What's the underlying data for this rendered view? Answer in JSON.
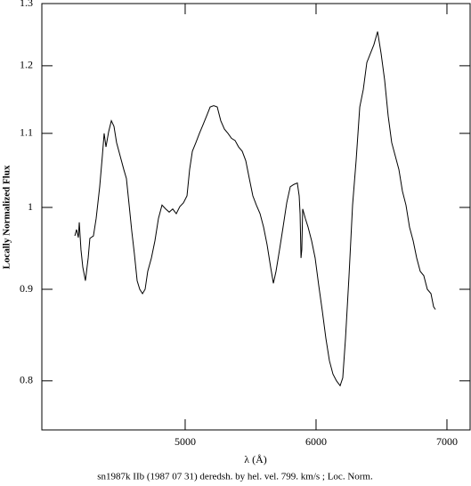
{
  "chart_data": {
    "type": "line",
    "title": "sn1987k IIb (1987 07 31) deredsh. by hel. vel.   799. km/s ;  Loc. Norm.",
    "x_label": "λ (Å)",
    "y_label": "Locally Normalized Flux",
    "color": "#000000",
    "ylog": true,
    "xlim": [
      3905,
      7177
    ],
    "xticks": [
      5000,
      6000,
      7000
    ],
    "ylim": [
      0.751,
      1.3
    ],
    "yticks": [
      0.8,
      0.9,
      1,
      1.1,
      1.2,
      1.3
    ],
    "x": [
      4157,
      4170,
      4184,
      4191,
      4204,
      4218,
      4238,
      4259,
      4272,
      4299,
      4320,
      4347,
      4367,
      4381,
      4395,
      4415,
      4436,
      4456,
      4476,
      4504,
      4531,
      4551,
      4572,
      4592,
      4612,
      4633,
      4653,
      4674,
      4694,
      4714,
      4742,
      4769,
      4796,
      4823,
      4851,
      4878,
      4905,
      4932,
      4959,
      4987,
      5014,
      5034,
      5055,
      5082,
      5109,
      5136,
      5164,
      5191,
      5218,
      5245,
      5272,
      5300,
      5327,
      5354,
      5381,
      5408,
      5436,
      5463,
      5490,
      5517,
      5544,
      5572,
      5599,
      5626,
      5653,
      5674,
      5694,
      5721,
      5748,
      5776,
      5803,
      5830,
      5857,
      5871,
      5878,
      5885,
      5891,
      5898,
      5918,
      5939,
      5966,
      5993,
      6020,
      6048,
      6075,
      6102,
      6129,
      6156,
      6184,
      6204,
      6225,
      6252,
      6279,
      6306,
      6334,
      6361,
      6388,
      6415,
      6442,
      6470,
      6497,
      6524,
      6551,
      6578,
      6606,
      6633,
      6660,
      6687,
      6714,
      6742,
      6769,
      6796,
      6823,
      6850,
      6878,
      6898,
      6912
    ],
    "values": [
      0.964,
      0.972,
      0.962,
      0.981,
      0.947,
      0.926,
      0.91,
      0.937,
      0.961,
      0.964,
      0.986,
      1.027,
      1.068,
      1.1,
      1.081,
      1.102,
      1.118,
      1.11,
      1.087,
      1.068,
      1.05,
      1.038,
      1.003,
      0.97,
      0.942,
      0.91,
      0.9,
      0.895,
      0.9,
      0.921,
      0.937,
      0.958,
      0.986,
      1.003,
      0.998,
      0.994,
      0.998,
      0.992,
      1.001,
      1.006,
      1.015,
      1.05,
      1.075,
      1.087,
      1.1,
      1.112,
      1.125,
      1.138,
      1.14,
      1.138,
      1.118,
      1.106,
      1.1,
      1.093,
      1.09,
      1.081,
      1.075,
      1.062,
      1.038,
      1.015,
      1.003,
      0.992,
      0.975,
      0.953,
      0.926,
      0.907,
      0.921,
      0.947,
      0.975,
      1.006,
      1.027,
      1.03,
      1.032,
      1.015,
      0.992,
      0.937,
      0.947,
      0.998,
      0.986,
      0.975,
      0.958,
      0.937,
      0.905,
      0.875,
      0.845,
      0.821,
      0.807,
      0.8,
      0.795,
      0.803,
      0.845,
      0.916,
      1.003,
      1.062,
      1.138,
      1.164,
      1.205,
      1.219,
      1.233,
      1.254,
      1.219,
      1.178,
      1.125,
      1.087,
      1.068,
      1.05,
      1.021,
      1.003,
      0.975,
      0.958,
      0.937,
      0.921,
      0.916,
      0.9,
      0.895,
      0.88,
      0.877
    ]
  }
}
